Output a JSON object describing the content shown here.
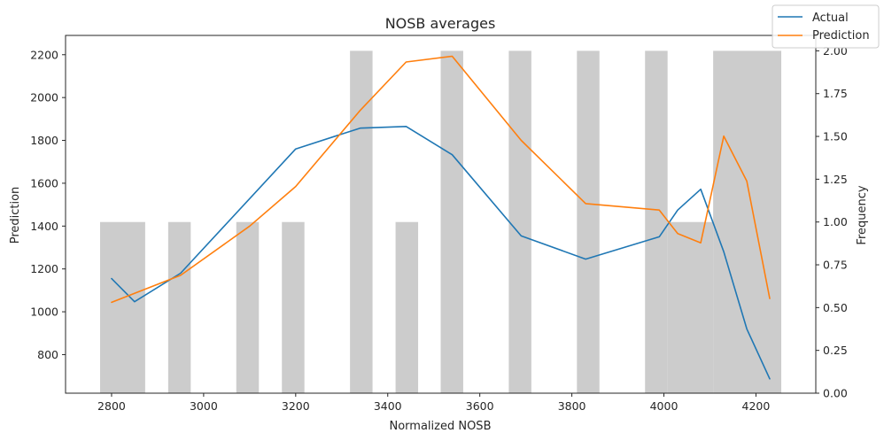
{
  "chart_data": {
    "type": "line",
    "title": "NOSB averages",
    "xlabel": "Normalized NOSB",
    "ylabel": "Prediction",
    "y2label": "Frequency",
    "xlim": [
      2700,
      4330
    ],
    "ylim": [
      620,
      2290
    ],
    "y2lim": [
      0,
      2.09
    ],
    "xticks": [
      2800,
      3000,
      3200,
      3400,
      3600,
      3800,
      4000,
      4200
    ],
    "yticks": [
      800,
      1000,
      1200,
      1400,
      1600,
      1800,
      2000,
      2200
    ],
    "y2ticks": [
      0.0,
      0.25,
      0.5,
      0.75,
      1.0,
      1.25,
      1.5,
      1.75,
      2.0
    ],
    "y2tick_labels": [
      "0.00",
      "0.25",
      "0.50",
      "0.75",
      "1.00",
      "1.25",
      "1.50",
      "1.75",
      "2.00"
    ],
    "legend_position": "top-right",
    "grid": false,
    "series": [
      {
        "name": "Actual",
        "color": "#1f77b4",
        "x": [
          2800,
          2850,
          2950,
          3200,
          3340,
          3440,
          3540,
          3690,
          3830,
          3990,
          4030,
          4080,
          4130,
          4180,
          4230
        ],
        "y": [
          1155,
          1047,
          1180,
          1760,
          1857,
          1865,
          1733,
          1354,
          1246,
          1350,
          1475,
          1572,
          1280,
          920,
          687
        ]
      },
      {
        "name": "Prediction",
        "color": "#ff7f0e",
        "x": [
          2800,
          2950,
          3100,
          3200,
          3340,
          3440,
          3540,
          3690,
          3830,
          3990,
          4030,
          4080,
          4130,
          4180,
          4230
        ],
        "y": [
          1044,
          1170,
          1400,
          1585,
          1940,
          2166,
          2193,
          1800,
          1505,
          1475,
          1365,
          1322,
          1820,
          1610,
          1062
        ]
      }
    ],
    "histogram": {
      "name": "Frequency",
      "axis": "right",
      "color": "#cccccc",
      "bins": [
        {
          "x0": 2775,
          "x1": 2873,
          "count": 1
        },
        {
          "x0": 2923,
          "x1": 2972,
          "count": 1
        },
        {
          "x0": 3071,
          "x1": 3120,
          "count": 1
        },
        {
          "x0": 3170,
          "x1": 3219,
          "count": 1
        },
        {
          "x0": 3318,
          "x1": 3367,
          "count": 2
        },
        {
          "x0": 3417,
          "x1": 3466,
          "count": 1
        },
        {
          "x0": 3515,
          "x1": 3564,
          "count": 2
        },
        {
          "x0": 3663,
          "x1": 3712,
          "count": 2
        },
        {
          "x0": 3811,
          "x1": 3860,
          "count": 2
        },
        {
          "x0": 3959,
          "x1": 4008,
          "count": 2
        },
        {
          "x0": 4008,
          "x1": 4107,
          "count": 1
        },
        {
          "x0": 4107,
          "x1": 4255,
          "count": 2
        }
      ]
    }
  }
}
